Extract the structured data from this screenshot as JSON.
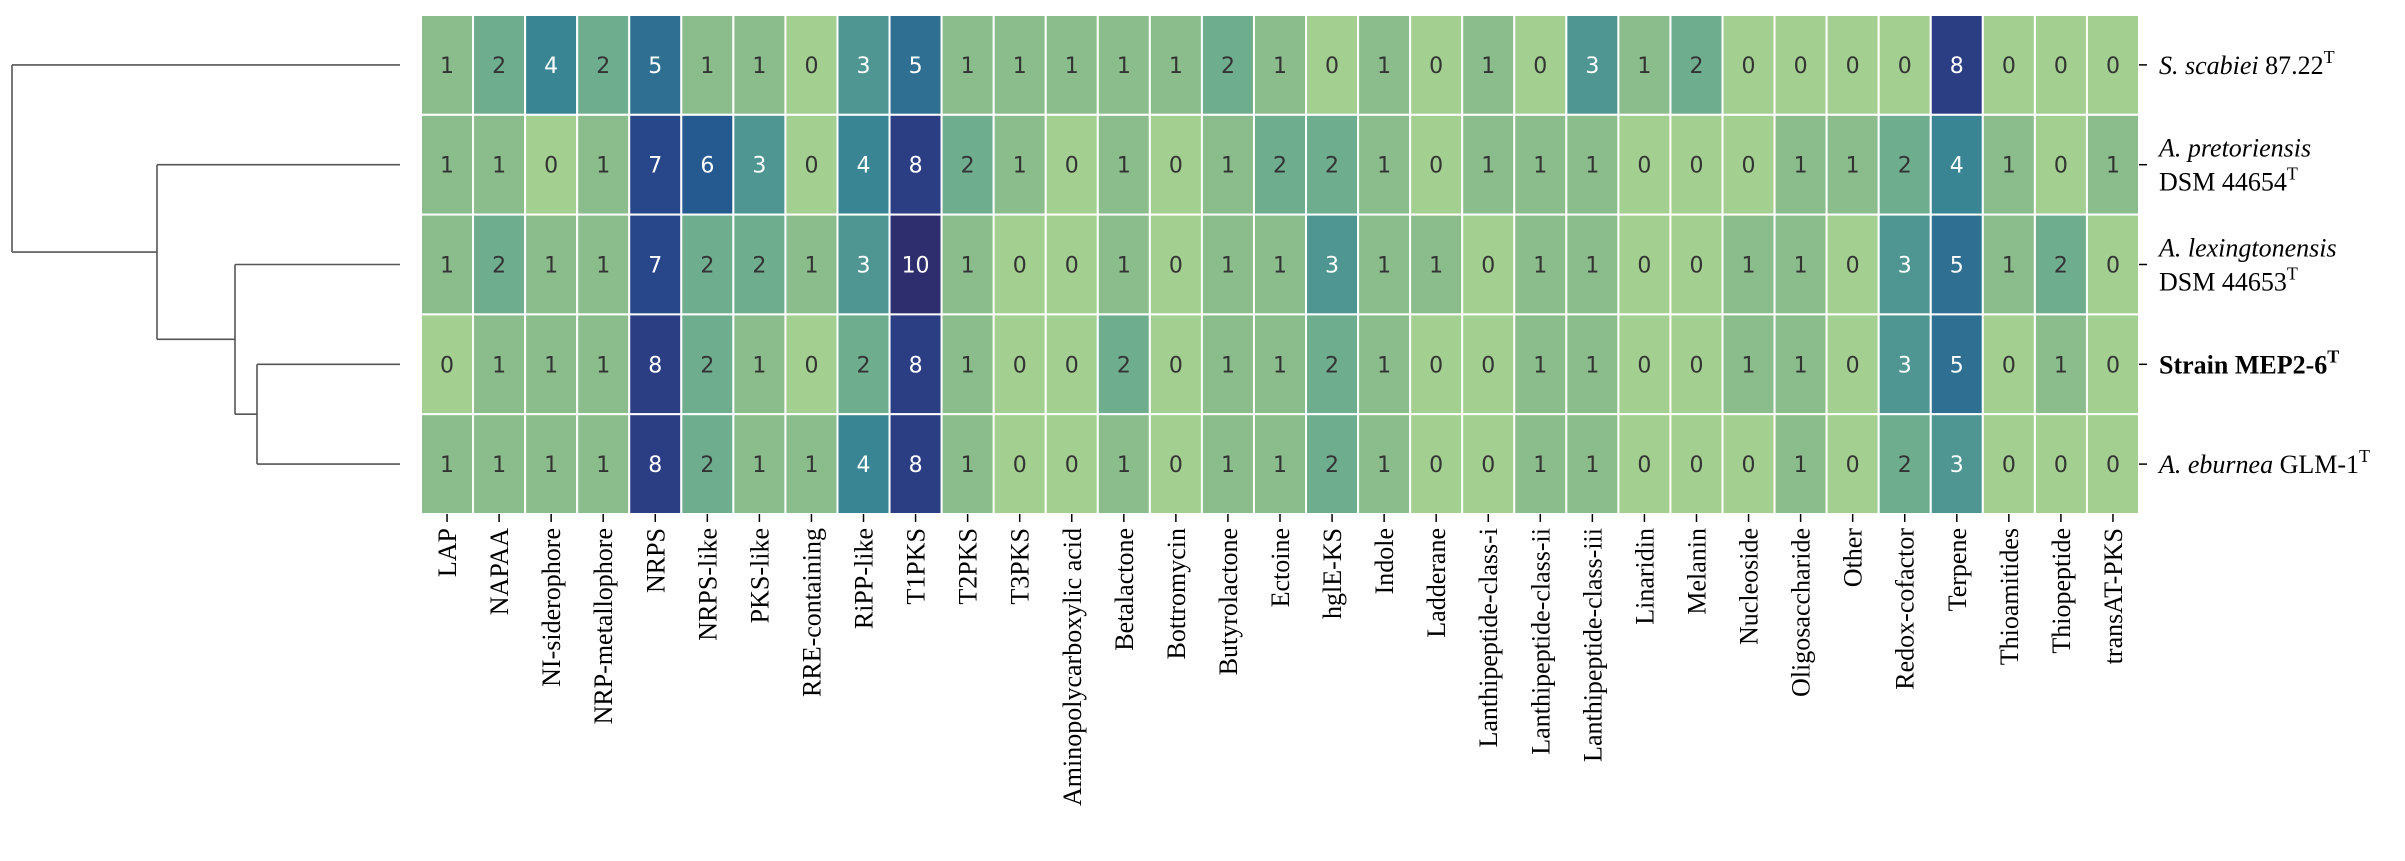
{
  "chart_data": {
    "type": "heatmap",
    "title": "",
    "xlabel": "",
    "ylabel": "",
    "columns": [
      "LAP",
      "NAPAA",
      "NI-siderophore",
      "NRP-metallophore",
      "NRPS",
      "NRPS-like",
      "PKS-like",
      "RRE-containing",
      "RiPP-like",
      "T1PKS",
      "T2PKS",
      "T3PKS",
      "Aminopolycarboxylic  acid",
      "Betalactone",
      "Bottromycin",
      "Butyrolactone",
      "Ectoine",
      "hglE-KS",
      "Indole",
      "Ladderane",
      "Lanthipeptide-class-i",
      "Lanthipeptide-class-ii",
      "Lanthipeptide-class-iii",
      "Linaridin",
      "Melanin",
      "Nucleoside",
      "Oligosaccharide",
      "Other",
      "Redox-cofactor",
      "Terpene",
      "Thioamitides",
      "Thiopeptide",
      "transAT-PKS"
    ],
    "rows": [
      {
        "name": "S. scabiei",
        "suffix": " 87.22",
        "sup": "T",
        "line2": "",
        "line2_sup": "",
        "bold": false
      },
      {
        "name": "A. pretoriensis",
        "suffix": "",
        "sup": "",
        "line2": "DSM 44654",
        "line2_sup": "T",
        "bold": false
      },
      {
        "name": "A. lexingtonensis",
        "suffix": "",
        "sup": "",
        "line2": "DSM 44653",
        "line2_sup": "T",
        "bold": false
      },
      {
        "name": "Strain MEP2-6",
        "suffix": "",
        "sup": "T",
        "line2": "",
        "line2_sup": "",
        "bold": true
      },
      {
        "name": "A. eburnea",
        "suffix": " GLM-1",
        "sup": "T",
        "line2": "",
        "line2_sup": "",
        "bold": false
      }
    ],
    "values": [
      [
        1,
        2,
        4,
        2,
        5,
        1,
        1,
        0,
        3,
        5,
        1,
        1,
        1,
        1,
        1,
        2,
        1,
        0,
        1,
        0,
        1,
        0,
        3,
        1,
        2,
        0,
        0,
        0,
        0,
        8,
        0,
        0,
        0
      ],
      [
        1,
        1,
        0,
        1,
        7,
        6,
        3,
        0,
        4,
        8,
        2,
        1,
        0,
        1,
        0,
        1,
        2,
        2,
        1,
        0,
        1,
        1,
        1,
        0,
        0,
        0,
        1,
        1,
        2,
        4,
        1,
        0,
        1
      ],
      [
        1,
        2,
        1,
        1,
        7,
        2,
        2,
        1,
        3,
        10,
        1,
        0,
        0,
        1,
        0,
        1,
        1,
        3,
        1,
        1,
        0,
        1,
        1,
        0,
        0,
        1,
        1,
        0,
        3,
        5,
        1,
        2,
        0
      ],
      [
        0,
        1,
        1,
        1,
        8,
        2,
        1,
        0,
        2,
        8,
        1,
        0,
        0,
        2,
        0,
        1,
        1,
        2,
        1,
        0,
        0,
        1,
        1,
        0,
        0,
        1,
        1,
        0,
        3,
        5,
        0,
        1,
        0
      ],
      [
        1,
        1,
        1,
        1,
        8,
        2,
        1,
        1,
        4,
        8,
        1,
        0,
        0,
        1,
        0,
        1,
        1,
        2,
        1,
        0,
        0,
        1,
        1,
        0,
        0,
        0,
        1,
        0,
        2,
        3,
        0,
        0,
        0
      ]
    ],
    "value_range": [
      0,
      10
    ],
    "colormap": [
      "#a3cf91",
      "#8abd8b",
      "#6fad8f",
      "#4f9693",
      "#3a8594",
      "#2e6f92",
      "#245a8f",
      "#27478a",
      "#2b3d83",
      "#2f337c",
      "#2e2d6e"
    ],
    "dendrogram": {
      "description": "hierarchical clustering of rows",
      "merges": [
        [
          3,
          4
        ],
        [
          2,
          "3+4"
        ],
        [
          1,
          "2+3+4"
        ],
        [
          0,
          "1+2+3+4"
        ]
      ]
    }
  }
}
